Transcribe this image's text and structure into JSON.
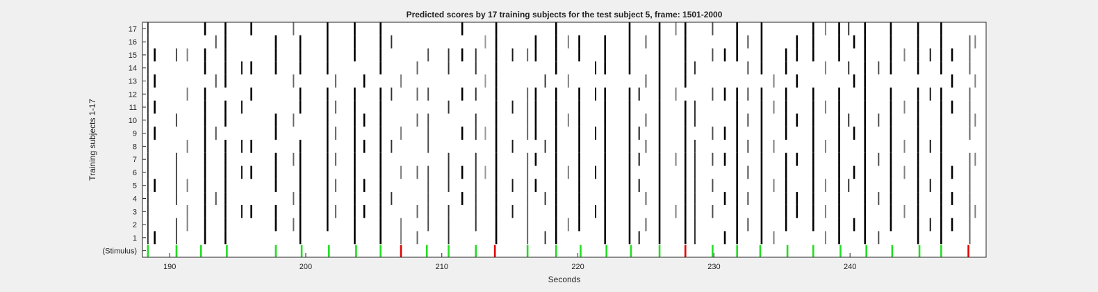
{
  "chart_data": {
    "type": "heatmap",
    "title": "Predicted scores by 17 training subjects for the test subject 5, frame: 1501-2000",
    "xlabel": "Seconds",
    "ylabel": "Training subjects 1-17",
    "xlim": [
      188,
      250
    ],
    "xticks": [
      190,
      200,
      210,
      220,
      230,
      240
    ],
    "rows": [
      "(Stimulus)",
      "1",
      "2",
      "3",
      "4",
      "5",
      "6",
      "7",
      "8",
      "9",
      "10",
      "11",
      "12",
      "13",
      "14",
      "15",
      "16",
      "17"
    ],
    "colors": {
      "stimulus_correct": "#22dd22",
      "stimulus_incorrect": "#e00000",
      "score_high": "#000000",
      "background": "#ffffff"
    },
    "stimulus": [
      {
        "x": 188.4,
        "c": "g"
      },
      {
        "x": 190.5,
        "c": "g"
      },
      {
        "x": 192.3,
        "c": "g"
      },
      {
        "x": 194.2,
        "c": "g"
      },
      {
        "x": 197.8,
        "c": "g"
      },
      {
        "x": 199.7,
        "c": "g"
      },
      {
        "x": 201.7,
        "c": "g"
      },
      {
        "x": 203.7,
        "c": "g"
      },
      {
        "x": 205.5,
        "c": "g"
      },
      {
        "x": 207.0,
        "c": "r"
      },
      {
        "x": 208.9,
        "c": "g"
      },
      {
        "x": 210.5,
        "c": "g"
      },
      {
        "x": 212.5,
        "c": "g"
      },
      {
        "x": 213.9,
        "c": "r"
      },
      {
        "x": 216.3,
        "c": "g"
      },
      {
        "x": 218.4,
        "c": "g"
      },
      {
        "x": 220.2,
        "c": "g"
      },
      {
        "x": 222.1,
        "c": "g"
      },
      {
        "x": 223.9,
        "c": "g"
      },
      {
        "x": 226.0,
        "c": "g"
      },
      {
        "x": 227.9,
        "c": "r"
      },
      {
        "x": 229.9,
        "c": "g"
      },
      {
        "x": 231.7,
        "c": "g"
      },
      {
        "x": 233.4,
        "c": "g"
      },
      {
        "x": 235.4,
        "c": "g"
      },
      {
        "x": 237.3,
        "c": "g"
      },
      {
        "x": 239.3,
        "c": "g"
      },
      {
        "x": 241.2,
        "c": "g"
      },
      {
        "x": 243.1,
        "c": "g"
      },
      {
        "x": 245.1,
        "c": "g"
      },
      {
        "x": 246.7,
        "c": "g"
      },
      {
        "x": 248.7,
        "c": "r"
      }
    ],
    "columns": [
      {
        "x": 188.4,
        "rows": [
          1,
          2,
          3,
          4,
          5,
          6,
          7,
          8,
          9,
          10,
          11,
          12,
          13,
          14,
          15,
          16,
          17
        ],
        "v": 0.8
      },
      {
        "x": 214.0,
        "rows": [
          1,
          2,
          3,
          4,
          5,
          6,
          7,
          8,
          9,
          10,
          11,
          12,
          13,
          14,
          15,
          16,
          17
        ],
        "v": 1.0
      },
      {
        "x": 226.0,
        "rows": [
          1,
          2,
          3,
          4,
          5,
          6,
          7,
          8,
          9,
          10,
          11,
          12,
          13,
          14,
          15,
          16,
          17
        ],
        "v": 1.0
      },
      {
        "x": 201.6,
        "rows": [
          2,
          3,
          4,
          5,
          6,
          7,
          8,
          9,
          10,
          11,
          12,
          14,
          15,
          16,
          17
        ],
        "v": 1.0
      },
      {
        "x": 205.5,
        "rows": [
          1,
          2,
          3,
          4,
          5,
          6,
          7,
          8,
          9,
          10,
          11,
          12,
          14,
          15,
          16,
          17
        ],
        "v": 1.0
      },
      {
        "x": 239.2,
        "rows": [
          1,
          2,
          3,
          4,
          5,
          6,
          7,
          8,
          9,
          10,
          11,
          12,
          15,
          16,
          17
        ],
        "v": 1.0
      },
      {
        "x": 241.1,
        "rows": [
          1,
          2,
          3,
          4,
          5,
          6,
          7,
          8,
          9,
          10,
          11,
          12,
          13,
          14,
          15,
          16,
          17
        ],
        "v": 1.0
      },
      {
        "x": 243.0,
        "rows": [
          2,
          3,
          4,
          5,
          6,
          7,
          8,
          9,
          10,
          11,
          12,
          14,
          15,
          16,
          17
        ],
        "v": 1.0
      },
      {
        "x": 194.1,
        "rows": [
          1,
          2,
          3,
          4,
          5,
          6,
          7,
          8,
          10,
          11,
          13,
          14,
          15,
          16,
          17
        ],
        "v": 1.0
      },
      {
        "x": 203.6,
        "rows": [
          1,
          2,
          3,
          4,
          5,
          6,
          7,
          8,
          9,
          10,
          11,
          12,
          15,
          16,
          17
        ],
        "v": 1.0
      },
      {
        "x": 227.9,
        "rows": [
          1,
          2,
          3,
          4,
          5,
          6,
          7,
          8,
          9,
          10,
          11,
          13,
          14,
          15,
          16,
          17
        ],
        "v": 1.0
      },
      {
        "x": 192.6,
        "rows": [
          1,
          2,
          3,
          4,
          5,
          6,
          7,
          8,
          9,
          10,
          11,
          12,
          14,
          15,
          17
        ],
        "v": 1.0
      },
      {
        "x": 197.8,
        "rows": [
          2,
          3,
          5,
          6,
          7,
          9,
          10,
          14,
          15,
          16
        ],
        "v": 1.0
      },
      {
        "x": 199.6,
        "rows": [
          1,
          2,
          3,
          4,
          5,
          6,
          7,
          8,
          11,
          12,
          14,
          15,
          16
        ],
        "v": 1.0
      },
      {
        "x": 209.0,
        "rows": [
          2,
          3,
          4,
          5,
          6,
          8,
          9,
          10,
          12,
          15
        ],
        "v": 0.7
      },
      {
        "x": 212.5,
        "rows": [
          2,
          3,
          4,
          5,
          6,
          7,
          9,
          10,
          12,
          14,
          15
        ],
        "v": 0.8
      },
      {
        "x": 218.4,
        "rows": [
          1,
          2,
          3,
          4,
          5,
          6,
          7,
          8,
          9,
          10,
          11,
          12,
          14,
          15,
          16,
          17
        ],
        "v": 1.0
      },
      {
        "x": 220.1,
        "rows": [
          2,
          3,
          4,
          5,
          6,
          7,
          8,
          9,
          10,
          11,
          12,
          15,
          16
        ],
        "v": 1.0
      },
      {
        "x": 222.0,
        "rows": [
          1,
          2,
          3,
          4,
          5,
          6,
          7,
          8,
          9,
          10,
          11,
          12,
          14,
          15,
          16
        ],
        "v": 1.0
      },
      {
        "x": 223.8,
        "rows": [
          1,
          2,
          3,
          4,
          5,
          6,
          7,
          8,
          9,
          10,
          11,
          12,
          14,
          15,
          16,
          17
        ],
        "v": 1.0
      },
      {
        "x": 231.7,
        "rows": [
          1,
          2,
          3,
          4,
          5,
          6,
          7,
          8,
          9,
          10,
          11,
          12,
          15,
          16,
          17
        ],
        "v": 1.0
      },
      {
        "x": 233.5,
        "rows": [
          1,
          2,
          3,
          4,
          5,
          6,
          7,
          8,
          9,
          10,
          11,
          12,
          14,
          15,
          16,
          17
        ],
        "v": 1.0
      },
      {
        "x": 235.3,
        "rows": [
          2,
          3,
          4,
          5,
          6,
          7,
          9,
          10,
          11,
          12,
          14,
          15
        ],
        "v": 1.0
      },
      {
        "x": 237.3,
        "rows": [
          2,
          3,
          4,
          5,
          6,
          7,
          8,
          9,
          10,
          11,
          12,
          15,
          16,
          17
        ],
        "v": 1.0
      },
      {
        "x": 245.0,
        "rows": [
          1,
          2,
          3,
          4,
          5,
          6,
          7,
          8,
          9,
          10,
          11,
          12,
          14,
          15,
          16,
          17
        ],
        "v": 1.0
      },
      {
        "x": 246.7,
        "rows": [
          1,
          2,
          3,
          4,
          5,
          6,
          7,
          8,
          9,
          10,
          11,
          12,
          14,
          15,
          16,
          17
        ],
        "v": 1.0
      },
      {
        "x": 248.8,
        "rows": [
          1,
          2,
          3,
          4,
          5,
          6,
          7,
          9,
          10,
          11,
          12,
          14,
          15,
          16
        ],
        "v": 0.6
      },
      {
        "x": 190.5,
        "rows": [
          1,
          2,
          4,
          5,
          6,
          7,
          10,
          15
        ],
        "v": 0.7
      },
      {
        "x": 216.3,
        "rows": [
          1,
          2,
          3,
          4,
          5,
          6,
          7,
          9,
          10,
          11,
          12,
          15
        ],
        "v": 0.6
      },
      {
        "x": 229.9,
        "rows": [
          3,
          5,
          7,
          9,
          12,
          15,
          17
        ],
        "v": 0.7
      },
      {
        "x": 210.5,
        "rows": [
          1,
          2,
          3,
          5,
          6,
          7,
          11,
          14,
          15
        ],
        "v": 0.8
      },
      {
        "x": 196.0,
        "rows": [
          3,
          6,
          8,
          12,
          14,
          17
        ],
        "v": 1.0
      },
      {
        "x": 207.0,
        "rows": [
          1,
          2,
          6,
          9,
          13
        ],
        "v": 0.5
      },
      {
        "x": 216.9,
        "rows": [
          5,
          7,
          9,
          10,
          11,
          12,
          15,
          16
        ],
        "v": 1.0
      },
      {
        "x": 228.6,
        "rows": [
          1,
          2,
          3,
          4,
          5,
          6,
          7,
          8,
          10,
          11,
          14
        ],
        "v": 0.8
      },
      {
        "x": 188.9,
        "rows": [
          1,
          5,
          9,
          11,
          13,
          15
        ],
        "v": 1.0
      },
      {
        "x": 202.2,
        "rows": [
          3,
          5,
          7,
          9,
          11,
          13
        ],
        "v": 0.6
      },
      {
        "x": 232.5,
        "rows": [
          2,
          4,
          6,
          8,
          10,
          12,
          14,
          16
        ],
        "v": 0.7
      },
      {
        "x": 236.1,
        "rows": [
          3,
          4,
          7,
          10,
          13,
          15,
          16
        ],
        "v": 1.0
      },
      {
        "x": 244.0,
        "rows": [
          3,
          6,
          8,
          11,
          15
        ],
        "v": 0.5
      },
      {
        "x": 211.5,
        "rows": [
          4,
          6,
          9,
          12,
          15,
          17
        ],
        "v": 1.0
      },
      {
        "x": 224.5,
        "rows": [
          1,
          5,
          7,
          9,
          12
        ],
        "v": 0.9
      },
      {
        "x": 238.2,
        "rows": [
          1,
          3,
          5,
          8,
          11,
          14,
          17
        ],
        "v": 0.5
      },
      {
        "x": 247.5,
        "rows": [
          2,
          4,
          6,
          11,
          13,
          15
        ],
        "v": 1.0
      },
      {
        "x": 191.3,
        "rows": [
          2,
          3,
          5,
          8,
          12,
          15
        ],
        "v": 0.5
      },
      {
        "x": 195.3,
        "rows": [
          3,
          6,
          8,
          11,
          14
        ],
        "v": 0.9
      },
      {
        "x": 199.1,
        "rows": [
          2,
          4,
          7,
          10,
          13,
          17
        ],
        "v": 0.6
      },
      {
        "x": 204.3,
        "rows": [
          3,
          5,
          8,
          10,
          13
        ],
        "v": 1.0
      },
      {
        "x": 208.2,
        "rows": [
          1,
          3,
          6,
          10,
          12,
          14
        ],
        "v": 0.6
      },
      {
        "x": 215.2,
        "rows": [
          3,
          5,
          8,
          11,
          15
        ],
        "v": 0.9
      },
      {
        "x": 219.3,
        "rows": [
          2,
          6,
          10,
          13,
          16
        ],
        "v": 0.5
      },
      {
        "x": 221.3,
        "rows": [
          3,
          6,
          9,
          12,
          14
        ],
        "v": 0.9
      },
      {
        "x": 225.0,
        "rows": [
          2,
          4,
          8,
          10,
          13,
          16
        ],
        "v": 0.6
      },
      {
        "x": 230.8,
        "rows": [
          1,
          4,
          7,
          9,
          12,
          15
        ],
        "v": 1.0
      },
      {
        "x": 234.4,
        "rows": [
          1,
          5,
          8,
          11,
          13
        ],
        "v": 0.5
      },
      {
        "x": 240.3,
        "rows": [
          2,
          6,
          9,
          13,
          16
        ],
        "v": 1.0
      },
      {
        "x": 242.1,
        "rows": [
          1,
          4,
          7,
          10,
          14
        ],
        "v": 0.7
      },
      {
        "x": 245.9,
        "rows": [
          2,
          5,
          8,
          12,
          15
        ],
        "v": 0.9
      },
      {
        "x": 249.2,
        "rows": [
          3,
          7,
          10,
          13,
          16
        ],
        "v": 0.5
      },
      {
        "x": 193.4,
        "rows": [
          4,
          9,
          13,
          16
        ],
        "v": 0.7
      },
      {
        "x": 206.3,
        "rows": [
          4,
          8,
          12,
          16
        ],
        "v": 0.8
      },
      {
        "x": 213.2,
        "rows": [
          6,
          9,
          13,
          16
        ],
        "v": 0.4
      },
      {
        "x": 217.6,
        "rows": [
          1,
          4,
          8,
          13
        ],
        "v": 0.8
      },
      {
        "x": 227.2,
        "rows": [
          3,
          7,
          12,
          17
        ],
        "v": 0.5
      },
      {
        "x": 239.9,
        "rows": [
          5,
          10,
          14,
          17
        ],
        "v": 0.8
      }
    ]
  }
}
